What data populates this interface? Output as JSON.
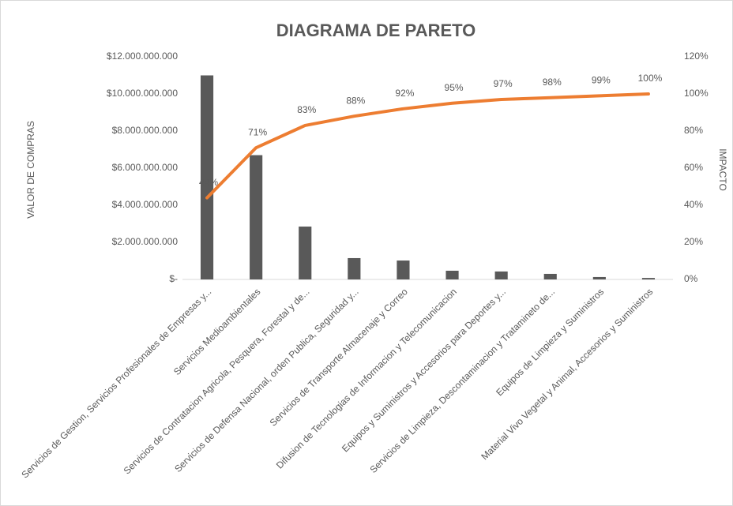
{
  "chart_data": {
    "type": "pareto",
    "title": "DIAGRAMA DE PARETO",
    "y_label": "VALOR DE COMPRAS",
    "y2_label": "IMPACTO",
    "categories": [
      "Servicios de Gestion, Servicios Profesionales de Empresas y...",
      "Servicios Medioambientales",
      "Servicios de Contratacion Agricola, Pesquera, Forestal y de...",
      "Servicios de Defensa Nacional, orden Publica, Seguridad y...",
      "Servicios de Transporte Almacenaje y Correo",
      "Difusion de Tecnologias de Informacion y Telecomunicacion",
      "Equipos y Suministros y Accesorios para Deportes y...",
      "Servicios de Limpieza, Descontaminacion y Tratamineto de...",
      "Equipos de Limpieza y Suministros",
      "Material Vivo Vegetal y Animal, Accesorios y Suministros"
    ],
    "series": [
      {
        "type": "bar",
        "color": "#595959",
        "values": [
          11000000000,
          6700000000,
          2850000000,
          1150000000,
          1020000000,
          470000000,
          430000000,
          300000000,
          130000000,
          80000000
        ]
      },
      {
        "type": "line",
        "axis": "y2",
        "color": "#ED7D31",
        "values": [
          44,
          71,
          83,
          88,
          92,
          95,
          97,
          98,
          99,
          100
        ],
        "value_labels": [
          "44%",
          "71%",
          "83%",
          "88%",
          "92%",
          "95%",
          "97%",
          "98%",
          "99%",
          "100%"
        ]
      }
    ],
    "ylim": [
      0,
      12000000000
    ],
    "yticks": [
      {
        "value": 0,
        "label": "$-"
      },
      {
        "value": 2000000000,
        "label": "$2.000.000.000"
      },
      {
        "value": 4000000000,
        "label": "$4.000.000.000"
      },
      {
        "value": 6000000000,
        "label": "$6.000.000.000"
      },
      {
        "value": 8000000000,
        "label": "$8.000.000.000"
      },
      {
        "value": 10000000000,
        "label": "$10.000.000.000"
      },
      {
        "value": 12000000000,
        "label": "$12.000.000.000"
      }
    ],
    "y2lim": [
      0,
      120
    ],
    "y2ticks": [
      {
        "value": 0,
        "label": "0%"
      },
      {
        "value": 20,
        "label": "20%"
      },
      {
        "value": 40,
        "label": "40%"
      },
      {
        "value": 60,
        "label": "60%"
      },
      {
        "value": 80,
        "label": "80%"
      },
      {
        "value": 100,
        "label": "100%"
      },
      {
        "value": 120,
        "label": "120%"
      }
    ],
    "grid": false
  }
}
